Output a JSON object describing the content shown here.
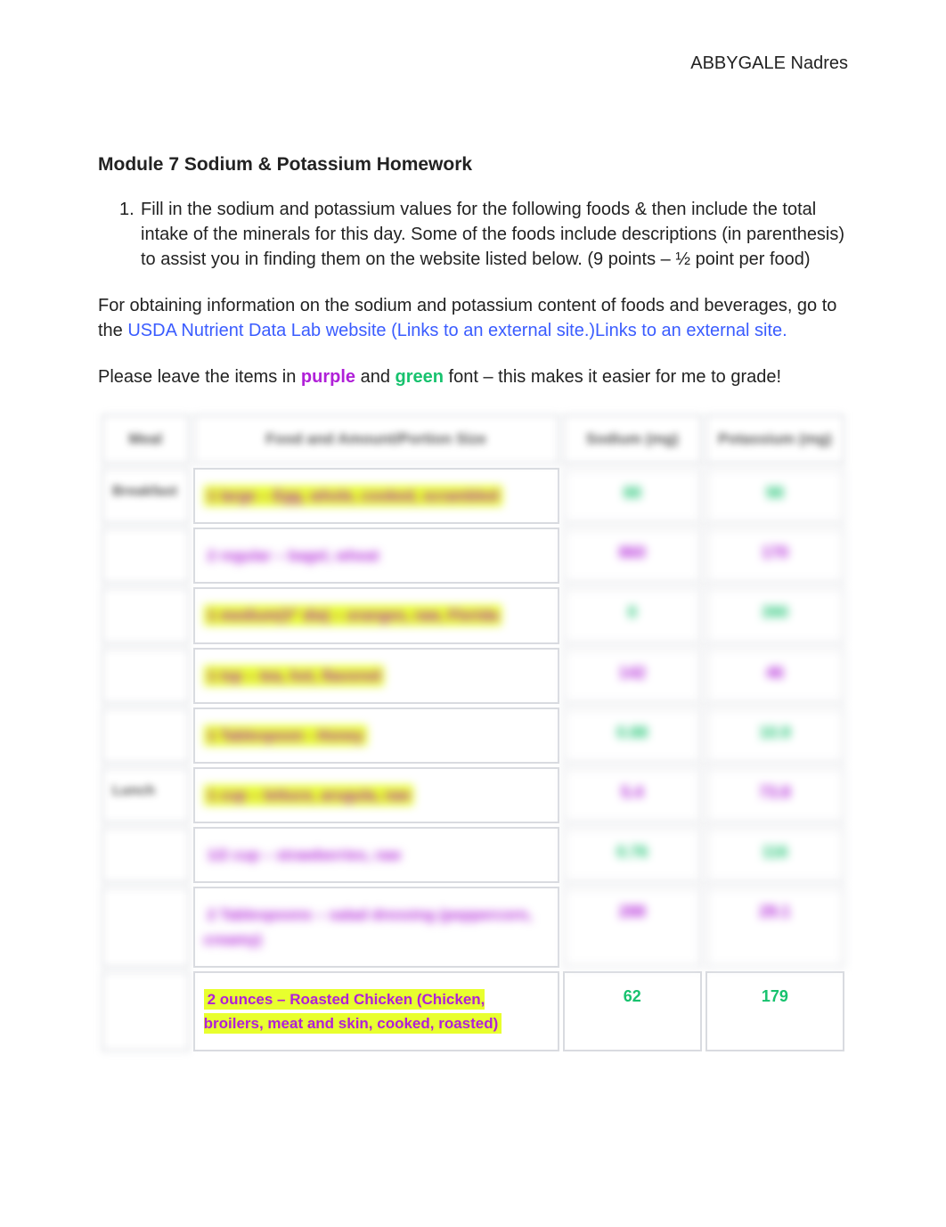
{
  "header": {
    "student_name": "ABBYGALE Nadres"
  },
  "title": "Module 7 Sodium & Potassium Homework",
  "list_number": "1.",
  "instruction_text": "Fill in the sodium and potassium values for the following foods & then include the total intake of the minerals for this day. Some of the foods include descriptions (in parenthesis) to assist you in finding them on the website listed below.  (9 points – ½ point per food)",
  "source_para_pre": "For obtaining information on the sodium and potassium content of foods and beverages, go to the ",
  "source_link_text": "USDA Nutrient Data Lab website (Links to an external site.)Links to an external site.",
  "grading_para_pre": "Please leave the items in ",
  "grading_para_mid": " and ",
  "grading_para_post": " font – this makes it easier for me to grade!",
  "purple_label": "purple",
  "green_label": "green",
  "colors": {
    "link": "#3a5cff",
    "purple": "#b020d8",
    "green": "#17c26e",
    "highlight": "#e8ff2e",
    "border": "#d9dbe0",
    "text": "#222222"
  },
  "table": {
    "columns": [
      "Meal",
      "Food and Amount/Portion Size",
      "Sodium (mg)",
      "Potassium (mg)"
    ],
    "col_widths_pct": [
      12,
      50,
      19,
      19
    ],
    "rows": [
      {
        "meal": "Breakfast",
        "food": "1 large – Egg, whole, cooked, scrambled",
        "sodium": "88",
        "potassium": "98",
        "val_color": "#17c26e",
        "highlight": true,
        "blurred": true
      },
      {
        "meal": "",
        "food": "2 regular – bagel, wheat",
        "sodium": "860",
        "potassium": "170",
        "val_color": "#b020d8",
        "highlight": false,
        "blurred": true
      },
      {
        "meal": "",
        "food": "1 medium(3\" dia) – oranges, raw, Florida",
        "sodium": "0",
        "potassium": "390",
        "val_color": "#17c26e",
        "highlight": true,
        "blurred": true
      },
      {
        "meal": "",
        "food": "1 tsp – tea, hot, flavored",
        "sodium": "142",
        "potassium": "46",
        "val_color": "#b020d8",
        "highlight": true,
        "blurred": true
      },
      {
        "meal": "",
        "food": "1 Tablespoon - Honey",
        "sodium": "0.88",
        "potassium": "10.9",
        "val_color": "#17c26e",
        "highlight": true,
        "blurred": true
      },
      {
        "meal": "Lunch",
        "food": "1 cup – lettuce, arugula, raw",
        "sodium": "5.4",
        "potassium": "73.8",
        "val_color": "#b020d8",
        "highlight": true,
        "blurred": true
      },
      {
        "meal": "",
        "food": "1/2 cup – strawberries, raw",
        "sodium": "0.76",
        "potassium": "116",
        "val_color": "#17c26e",
        "highlight": false,
        "blurred": true
      },
      {
        "meal": "",
        "food": "2 Tablespoons – salad dressing (peppercorn, creamy)",
        "sodium": "288",
        "potassium": "29.1",
        "val_color": "#b020d8",
        "highlight": false,
        "blurred": true
      },
      {
        "meal": "",
        "food": "2 ounces – Roasted Chicken (Chicken, broilers, meat and skin, cooked, roasted)",
        "sodium": "62",
        "potassium": "179",
        "val_color": "#17c26e",
        "highlight": true,
        "blurred": false
      }
    ]
  }
}
